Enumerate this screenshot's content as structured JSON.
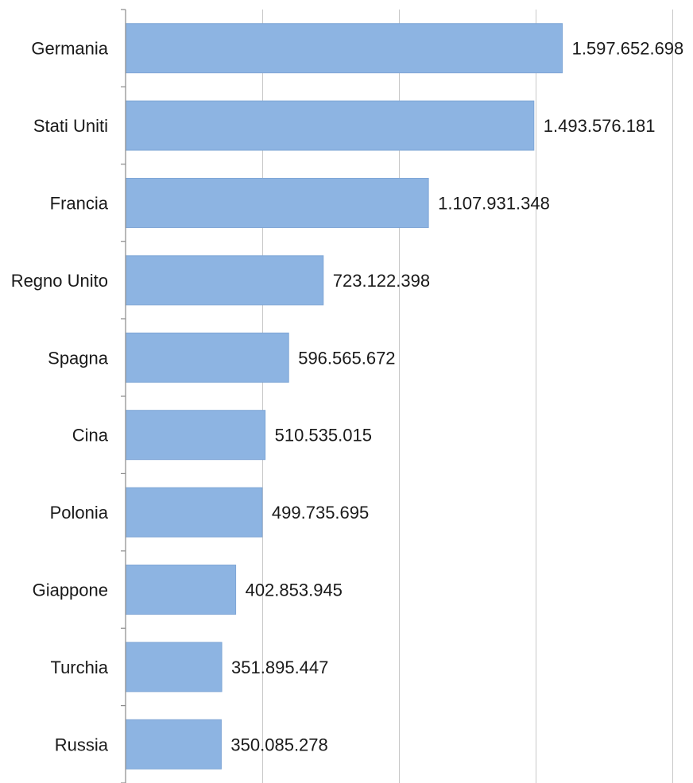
{
  "chart_data": {
    "type": "bar",
    "orientation": "horizontal",
    "categories": [
      "Germania",
      "Stati Uniti",
      "Francia",
      "Regno Unito",
      "Spagna",
      "Cina",
      "Polonia",
      "Giappone",
      "Turchia",
      "Russia"
    ],
    "values": [
      1597652698,
      1493576181,
      1107931348,
      723122398,
      596565672,
      510535015,
      499735695,
      402853945,
      351895447,
      350085278
    ],
    "value_labels": [
      "1.597.652.698",
      "1.493.576.181",
      "1.107.931.348",
      "723.122.398",
      "596.565.672",
      "510.535.015",
      "499.735.695",
      "402.853.945",
      "351.895.447",
      "350.085.278"
    ],
    "xlim": [
      0,
      2000000000
    ],
    "x_grid_step": 500000000,
    "grid": true,
    "legend": "none",
    "bar_color": "#8db4e2"
  }
}
